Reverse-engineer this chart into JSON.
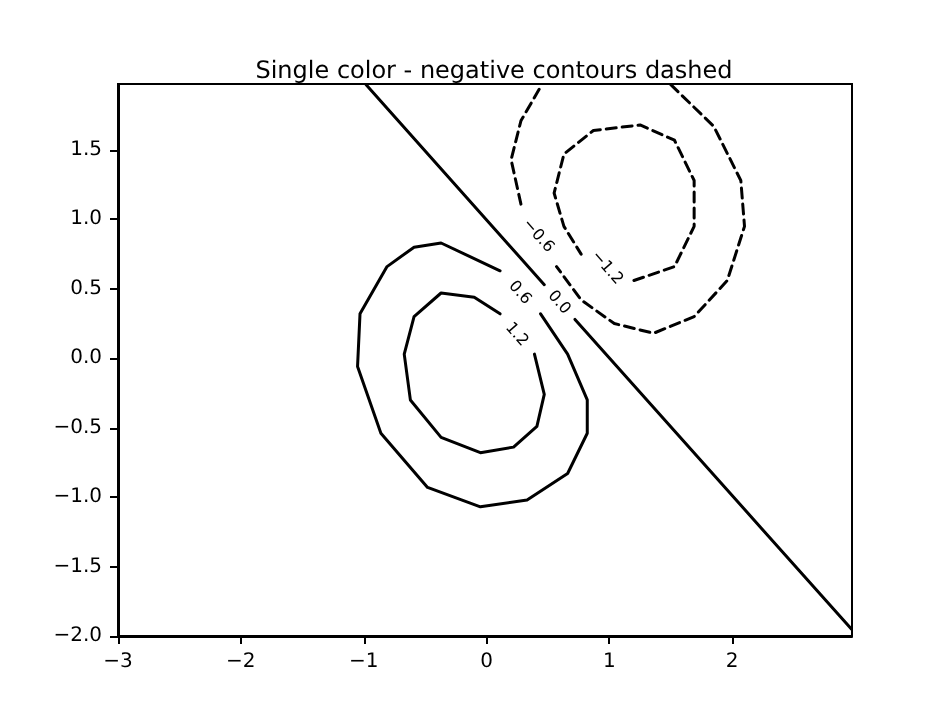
{
  "chart_data": {
    "type": "line",
    "title": "Single color - negative contours dashed",
    "xlim": [
      -3,
      2.975
    ],
    "ylim": [
      -2,
      1.975
    ],
    "xticks": [
      {
        "value": -3,
        "label": "−3"
      },
      {
        "value": -2,
        "label": "−2"
      },
      {
        "value": -1,
        "label": "−1"
      },
      0,
      1,
      2
    ],
    "yticks": [
      {
        "value": -2,
        "label": "−2.0"
      },
      {
        "value": -1.5,
        "label": "−1.5"
      },
      {
        "value": -1,
        "label": "−1.0"
      },
      {
        "value": -0.5,
        "label": "−0.5"
      },
      {
        "value": 0,
        "label": "0.0"
      },
      0.5,
      {
        "value": 1,
        "label": "1.0"
      },
      1.5
    ],
    "grid": false,
    "legend": false,
    "marker": "none",
    "series": [
      {
        "name": "0.6",
        "color": "#000000",
        "line_style": "solid",
        "x": [
          0.44,
          0.66,
          0.82,
          0.82,
          0.66,
          0.33,
          -0.05,
          -0.48,
          -0.86,
          -1.05,
          -1.03,
          -0.81,
          -0.59,
          -0.37,
          0.11
        ],
        "values": [
          0.32,
          0.03,
          -0.3,
          -0.54,
          -0.83,
          -1.02,
          -1.07,
          -0.93,
          -0.54,
          -0.06,
          0.32,
          0.66,
          0.8,
          0.83,
          0.63
        ]
      },
      {
        "name": "1.2",
        "color": "#000000",
        "line_style": "solid",
        "x": [
          0.39,
          0.47,
          0.41,
          0.22,
          -0.05,
          -0.37,
          -0.62,
          -0.67,
          -0.59,
          -0.37,
          -0.1,
          0.11
        ],
        "values": [
          0.03,
          -0.26,
          -0.49,
          -0.64,
          -0.68,
          -0.57,
          -0.3,
          0.03,
          0.3,
          0.47,
          0.44,
          0.32
        ]
      },
      {
        "name": "0.0",
        "color": "#000000",
        "line_style": "solid",
        "x": [
          0.72,
          2.97,
          null,
          -0.98,
          0.47
        ],
        "values": [
          0.28,
          -1.95,
          null,
          1.97,
          0.53
        ]
      },
      {
        "name": "−0.6",
        "color": "#000000",
        "line_style": "dashed",
        "x": [
          0.28,
          0.2,
          0.28,
          0.45,
          null,
          1.5,
          1.85,
          2.07,
          2.1,
          1.96,
          1.69,
          1.36,
          1.04,
          0.77,
          0.57
        ],
        "values": [
          1.11,
          1.43,
          1.71,
          1.97,
          null,
          1.97,
          1.67,
          1.28,
          0.95,
          0.56,
          0.3,
          0.18,
          0.25,
          0.42,
          0.66
        ]
      },
      {
        "name": "−1.2",
        "color": "#000000",
        "line_style": "dashed",
        "x": [
          1.2,
          1.53,
          1.69,
          1.69,
          1.53,
          1.25,
          0.87,
          0.63,
          0.55,
          0.63,
          0.77
        ],
        "values": [
          0.56,
          0.66,
          0.95,
          1.28,
          1.57,
          1.68,
          1.64,
          1.47,
          1.19,
          0.95,
          0.75
        ]
      }
    ]
  }
}
